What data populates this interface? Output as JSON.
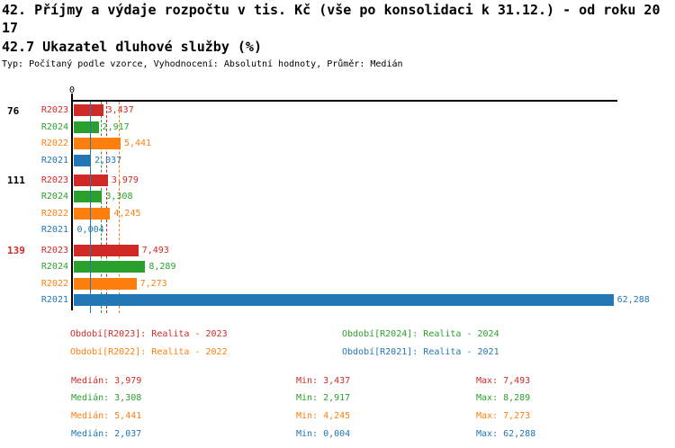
{
  "header": {
    "title_line1": "42. Příjmy a výdaje rozpočtu v tis. Kč (vše po konsolidaci k 31.12.) - od roku 20",
    "title_line2": "17",
    "subtitle": "42.7 Ukazatel dluhové služby (%)",
    "meta": "Typ: Počítaný podle vzorce, Vyhodnocení: Absolutní hodnoty, Průměr: Medián"
  },
  "chart_data": {
    "type": "bar",
    "orientation": "horizontal",
    "value_axis": {
      "zero_label": "0",
      "min": 0,
      "max": 62.288,
      "grid": false
    },
    "series": [
      {
        "id": "R2023",
        "color": "#d02a27",
        "legend": "Období[R2023]: Realita - 2023",
        "median": 3.979,
        "median_display": "3,979",
        "median_line_style": "dashed"
      },
      {
        "id": "R2024",
        "color": "#2ca02c",
        "legend": "Období[R2024]: Realita - 2024",
        "median": 3.308,
        "median_display": "3,308",
        "median_line_style": "dashed"
      },
      {
        "id": "R2022",
        "color": "#ff7f0e",
        "legend": "Období[R2022]: Realita - 2022",
        "median": 5.441,
        "median_display": "5,441",
        "median_line_style": "dashed"
      },
      {
        "id": "R2021",
        "color": "#2277b4",
        "legend": "Období[R2021]: Realita - 2021",
        "median": 2.037,
        "median_display": "2,037",
        "median_line_style": "solid"
      }
    ],
    "groups": [
      {
        "label": "76",
        "highlight": false,
        "values": [
          3.437,
          2.917,
          5.441,
          2.037
        ],
        "displays": [
          "3,437",
          "2,917",
          "5,441",
          "2,037"
        ]
      },
      {
        "label": "111",
        "highlight": false,
        "values": [
          3.979,
          3.308,
          4.245,
          0.004
        ],
        "displays": [
          "3,979",
          "3,308",
          "4,245",
          "0,004"
        ]
      },
      {
        "label": "139",
        "highlight": true,
        "values": [
          7.493,
          8.289,
          7.273,
          62.288
        ],
        "displays": [
          "7,493",
          "8,289",
          "7,273",
          "62,288"
        ]
      }
    ],
    "stats": {
      "median_label": "Medián:",
      "min_label": "Min:",
      "max_label": "Max:",
      "rows": [
        {
          "series": "R2023",
          "median": "3,979",
          "min": "3,437",
          "max": "7,493"
        },
        {
          "series": "R2024",
          "median": "3,308",
          "min": "2,917",
          "max": "8,289"
        },
        {
          "series": "R2022",
          "median": "5,441",
          "min": "4,245",
          "max": "7,273"
        },
        {
          "series": "R2021",
          "median": "2,037",
          "min": "0,004",
          "max": "62,288"
        }
      ]
    },
    "highlight_color": "#d02a27",
    "axis_color": "#000000"
  }
}
